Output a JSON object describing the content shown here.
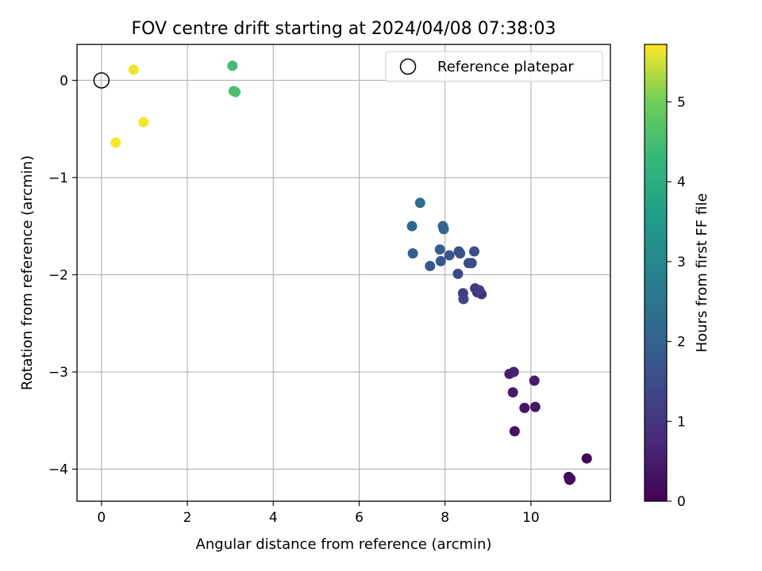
{
  "chart_data": {
    "type": "scatter",
    "title": "FOV centre drift starting at 2024/04/08 07:38:03",
    "xlabel": "Angular distance from reference (arcmin)",
    "ylabel": "Rotation from reference (arcmin)",
    "xlim": [
      -0.57,
      11.85
    ],
    "ylim": [
      -4.33,
      0.37
    ],
    "xticks": [
      0,
      2,
      4,
      6,
      8,
      10
    ],
    "yticks": [
      0,
      -1,
      -2,
      -3,
      -4
    ],
    "xtick_labels": [
      "0",
      "2",
      "4",
      "6",
      "8",
      "10"
    ],
    "ytick_labels": [
      "0",
      "−1",
      "−2",
      "−3",
      "−4"
    ],
    "grid": true,
    "legend": {
      "position": "top-right",
      "label": "Reference platepar"
    },
    "reference_point": {
      "x": 0,
      "y": 0
    },
    "colorbar": {
      "label": "Hours from first FF file",
      "colormap": "viridis",
      "range": [
        0,
        5.72
      ],
      "ticks": [
        0,
        1,
        2,
        3,
        4,
        5
      ],
      "tick_labels": [
        "0",
        "1",
        "2",
        "3",
        "4",
        "5"
      ]
    },
    "points": [
      {
        "x": 11.3,
        "y": -3.89,
        "c": 0.05
      },
      {
        "x": 10.88,
        "y": -4.08,
        "c": 0.1
      },
      {
        "x": 10.9,
        "y": -4.11,
        "c": 0.15
      },
      {
        "x": 10.92,
        "y": -4.1,
        "c": 0.2
      },
      {
        "x": 9.62,
        "y": -3.61,
        "c": 0.3
      },
      {
        "x": 9.85,
        "y": -3.37,
        "c": 0.35
      },
      {
        "x": 10.1,
        "y": -3.36,
        "c": 0.4
      },
      {
        "x": 9.58,
        "y": -3.21,
        "c": 0.45
      },
      {
        "x": 10.08,
        "y": -3.09,
        "c": 0.5
      },
      {
        "x": 9.5,
        "y": -3.02,
        "c": 0.55
      },
      {
        "x": 9.6,
        "y": -3.0,
        "c": 0.6
      },
      {
        "x": 8.85,
        "y": -2.2,
        "c": 1.0
      },
      {
        "x": 8.75,
        "y": -2.18,
        "c": 1.05
      },
      {
        "x": 8.7,
        "y": -2.14,
        "c": 1.1
      },
      {
        "x": 8.8,
        "y": -2.16,
        "c": 1.15
      },
      {
        "x": 8.42,
        "y": -2.19,
        "c": 1.2
      },
      {
        "x": 8.43,
        "y": -2.25,
        "c": 1.25
      },
      {
        "x": 8.3,
        "y": -1.99,
        "c": 1.4
      },
      {
        "x": 8.55,
        "y": -1.88,
        "c": 1.45
      },
      {
        "x": 8.62,
        "y": -1.88,
        "c": 1.5
      },
      {
        "x": 8.68,
        "y": -1.76,
        "c": 1.55
      },
      {
        "x": 8.35,
        "y": -1.78,
        "c": 1.6
      },
      {
        "x": 8.32,
        "y": -1.76,
        "c": 1.65
      },
      {
        "x": 8.1,
        "y": -1.8,
        "c": 1.7
      },
      {
        "x": 7.9,
        "y": -1.86,
        "c": 1.75
      },
      {
        "x": 7.65,
        "y": -1.91,
        "c": 1.8
      },
      {
        "x": 7.88,
        "y": -1.74,
        "c": 1.85
      },
      {
        "x": 7.25,
        "y": -1.78,
        "c": 2.0
      },
      {
        "x": 7.95,
        "y": -1.5,
        "c": 2.05
      },
      {
        "x": 7.97,
        "y": -1.53,
        "c": 2.1
      },
      {
        "x": 7.23,
        "y": -1.5,
        "c": 2.15
      },
      {
        "x": 7.42,
        "y": -1.26,
        "c": 2.25
      },
      {
        "x": 3.05,
        "y": 0.15,
        "c": 4.45
      },
      {
        "x": 3.08,
        "y": -0.11,
        "c": 4.5
      },
      {
        "x": 3.12,
        "y": -0.12,
        "c": 4.55
      },
      {
        "x": 0.75,
        "y": 0.11,
        "c": 5.65
      },
      {
        "x": 0.98,
        "y": -0.43,
        "c": 5.68
      },
      {
        "x": 0.33,
        "y": -0.64,
        "c": 5.7
      }
    ]
  }
}
